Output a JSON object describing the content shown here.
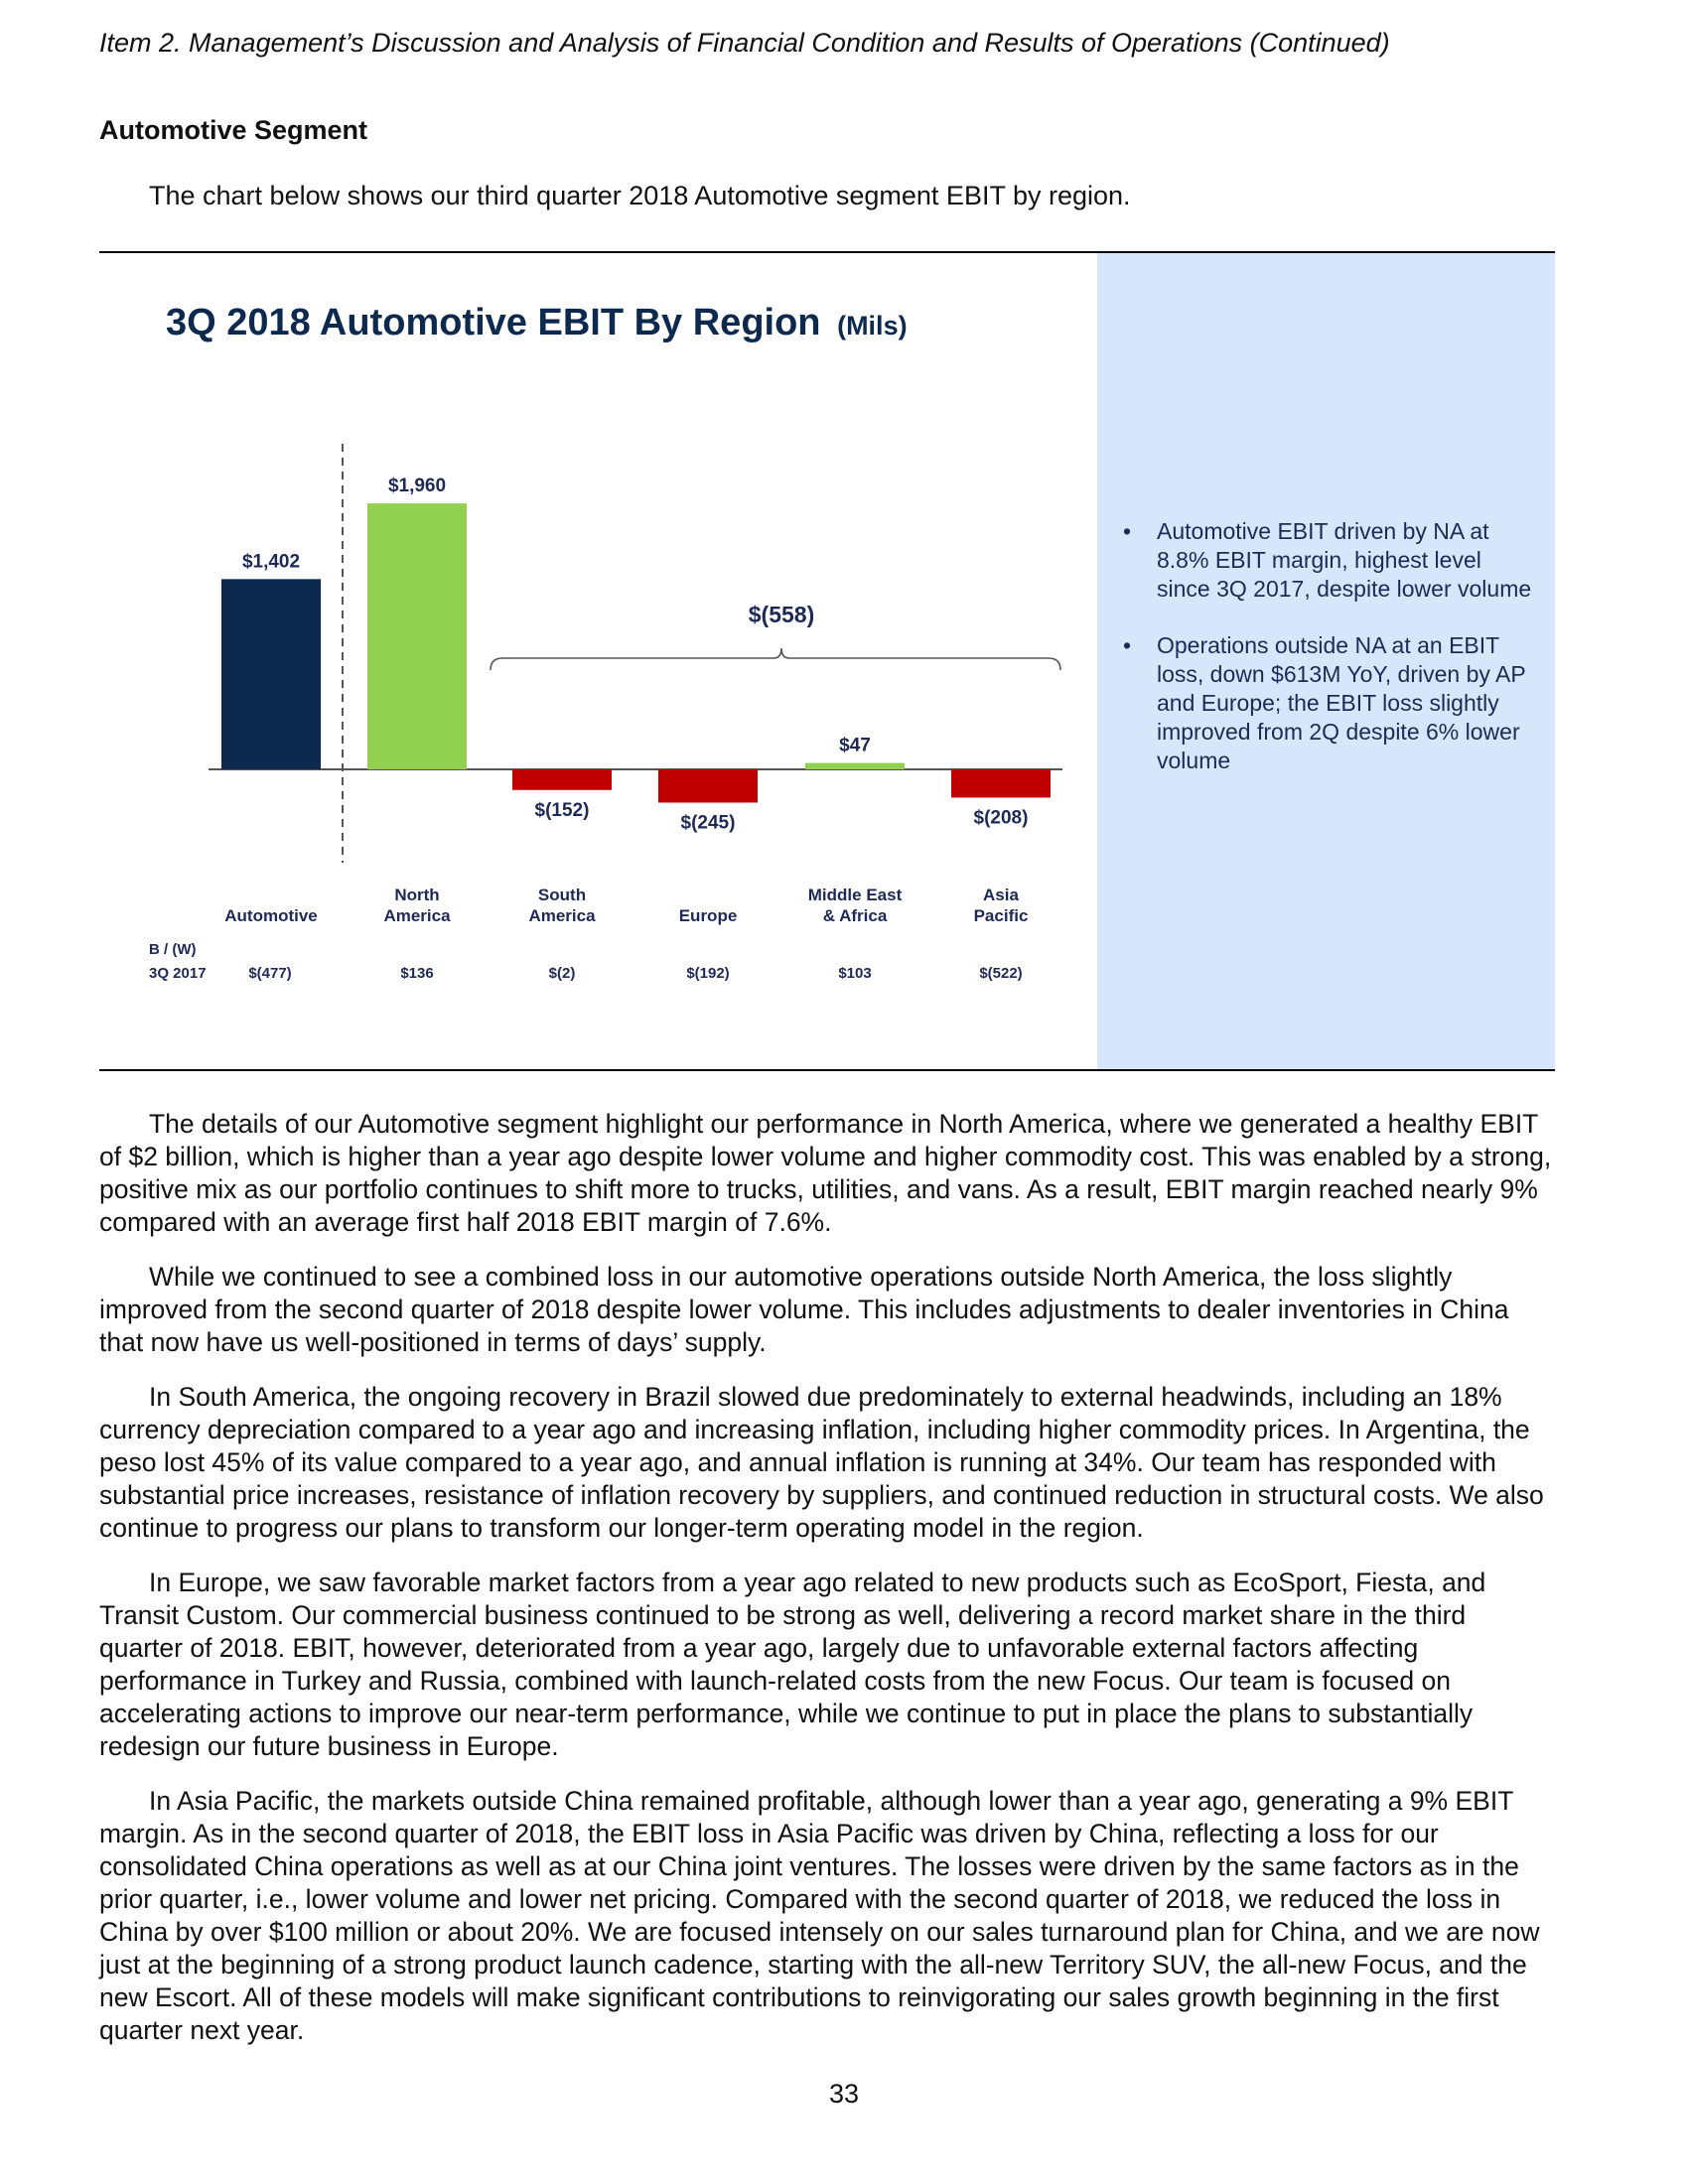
{
  "header": "Item 2.  Management’s Discussion and Analysis of Financial Condition and Results of Operations (Continued)",
  "section_title": "Automotive Segment",
  "intro": "The chart below shows our third quarter 2018 Automotive segment EBIT by region.",
  "chart_data": {
    "type": "bar",
    "title": "3Q 2018 Automotive EBIT By Region",
    "title_unit": "(Mils)",
    "categories": [
      "Automotive",
      "North America",
      "South America",
      "Europe",
      "Middle East & Africa",
      "Asia Pacific"
    ],
    "category_lines": [
      [
        "Automotive"
      ],
      [
        "North",
        "America"
      ],
      [
        "South",
        "America"
      ],
      [
        "Europe"
      ],
      [
        "Middle East",
        "& Africa"
      ],
      [
        "Asia",
        "Pacific"
      ]
    ],
    "values": [
      1402,
      1960,
      -152,
      -245,
      47,
      -208
    ],
    "value_labels": [
      "$1,402",
      "$1,960",
      "$(152)",
      "$(245)",
      "$47",
      "$(208)"
    ],
    "bar_colors": [
      "#0d2a4e",
      "#92d050",
      "#c00000",
      "#c00000",
      "#92d050",
      "#c00000"
    ],
    "bracket_label": "$(558)",
    "bracket_span": [
      "South America",
      "Asia Pacific"
    ],
    "comparison_label": [
      "B / (W)",
      "3Q 2017"
    ],
    "comparison_values": [
      "$(477)",
      "$136",
      "$(2)",
      "$(192)",
      "$103",
      "$(522)"
    ],
    "title_color": "#0d2a4e",
    "side_panel_color": "#d6e6fb"
  },
  "bullets": [
    "Automotive EBIT driven by NA at 8.8% EBIT margin, highest level since 3Q 2017, despite lower volume",
    "Operations outside NA at an EBIT loss, down $613M YoY, driven by AP and Europe; the EBIT loss slightly improved from 2Q despite 6% lower volume"
  ],
  "paragraphs": [
    "The details of our Automotive segment highlight our performance in North America, where we generated a healthy EBIT of $2 billion, which is higher than a year ago despite lower volume and higher commodity cost.  This was enabled by a strong, positive mix as our portfolio continues to shift more to trucks, utilities, and vans.  As a result, EBIT margin reached nearly 9% compared with an average first half 2018 EBIT margin of 7.6%.",
    "While we continued to see a combined loss in our automotive operations outside North America, the loss slightly improved from the second quarter of 2018 despite lower volume.  This includes adjustments to dealer inventories in China that now have us well-positioned in terms of days’ supply.",
    "In South America, the ongoing recovery in Brazil slowed due predominately to external headwinds, including an 18% currency depreciation compared to a year ago and increasing inflation, including higher commodity prices.  In Argentina, the peso lost 45% of its value compared to a year ago, and annual inflation is running at 34%.  Our team has responded with substantial price increases, resistance of inflation recovery by suppliers, and continued reduction in structural costs.  We also continue to progress our plans to transform our longer-term operating model in the region.",
    "In Europe, we saw favorable market factors from a year ago related to new products such as EcoSport, Fiesta, and Transit Custom.  Our commercial business continued to be strong as well, delivering a record market share in the third quarter of 2018.  EBIT, however, deteriorated from a year ago, largely due to unfavorable external factors affecting performance in Turkey and Russia, combined with launch-related costs from the new Focus.  Our team is focused on accelerating actions to improve our near-term performance, while we continue to put in place the plans to substantially redesign our future business in Europe.",
    "In Asia Pacific, the markets outside China remained profitable, although lower than a year ago, generating a 9% EBIT margin.  As in the second quarter of 2018, the EBIT loss in Asia Pacific was driven by China, reflecting a loss for our consolidated China operations as well as at our China joint ventures.  The losses were driven by the same factors as in the prior quarter, i.e., lower volume and lower net pricing.  Compared with the second quarter of 2018, we reduced the loss in China by over $100 million or about 20%.  We are focused intensely on our sales turnaround plan for China, and we are now just at the beginning of a strong product launch cadence, starting with the all-new Territory SUV, the all-new Focus, and the new Escort.  All of these models will make significant contributions to reinvigorating our sales growth beginning in the first quarter next year."
  ],
  "page_number": "33"
}
